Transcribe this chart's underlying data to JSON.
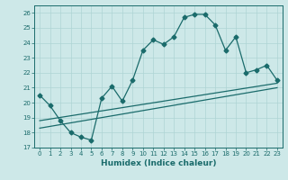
{
  "xlabel": "Humidex (Indice chaleur)",
  "xlim": [
    -0.5,
    23.5
  ],
  "ylim": [
    17,
    26.5
  ],
  "yticks": [
    17,
    18,
    19,
    20,
    21,
    22,
    23,
    24,
    25,
    26
  ],
  "xticks": [
    0,
    1,
    2,
    3,
    4,
    5,
    6,
    7,
    8,
    9,
    10,
    11,
    12,
    13,
    14,
    15,
    16,
    17,
    18,
    19,
    20,
    21,
    22,
    23
  ],
  "bg_color": "#cde8e8",
  "line_color": "#1a6b6b",
  "line1_x": [
    0,
    1,
    2,
    3,
    4,
    5,
    6,
    7,
    8,
    9,
    10,
    11,
    12,
    13,
    14,
    15,
    16,
    17,
    18,
    19,
    20,
    21,
    22,
    23
  ],
  "line1_y": [
    20.5,
    19.8,
    18.8,
    18.0,
    17.7,
    17.5,
    20.3,
    21.1,
    20.1,
    21.5,
    23.5,
    24.2,
    23.9,
    24.4,
    25.7,
    25.9,
    25.9,
    25.2,
    23.5,
    24.4,
    22.0,
    22.2,
    22.5,
    21.5
  ],
  "line2_x": [
    0,
    23
  ],
  "line2_y": [
    18.8,
    21.3
  ],
  "line3_x": [
    0,
    23
  ],
  "line3_y": [
    18.3,
    21.0
  ],
  "grid_color": "#aed4d4",
  "marker_size": 2.5,
  "linewidth": 0.9,
  "tick_fontsize": 5.0,
  "label_fontsize": 6.5
}
